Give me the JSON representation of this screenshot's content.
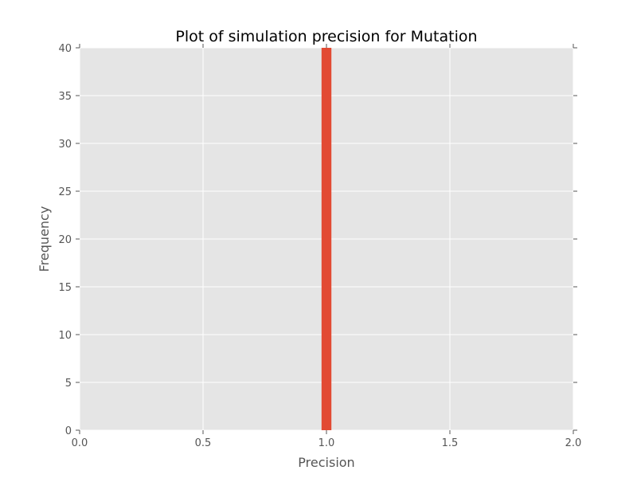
{
  "chart_data": {
    "type": "bar",
    "title": "Plot of simulation precision for Mutation",
    "xlabel": "Precision",
    "ylabel": "Frequency",
    "xlim": [
      0.0,
      2.0
    ],
    "ylim": [
      0,
      40
    ],
    "xticks": [
      "0.0",
      "0.5",
      "1.0",
      "1.5",
      "2.0"
    ],
    "yticks": [
      "0",
      "5",
      "10",
      "15",
      "20",
      "25",
      "30",
      "35",
      "40"
    ],
    "grid": true,
    "bins": [
      {
        "x_start": 0.98,
        "x_end": 1.02,
        "count": 40
      }
    ],
    "colors": {
      "bar": "#e24a33",
      "plot_background": "#e5e5e5",
      "grid": "#ffffff"
    }
  }
}
